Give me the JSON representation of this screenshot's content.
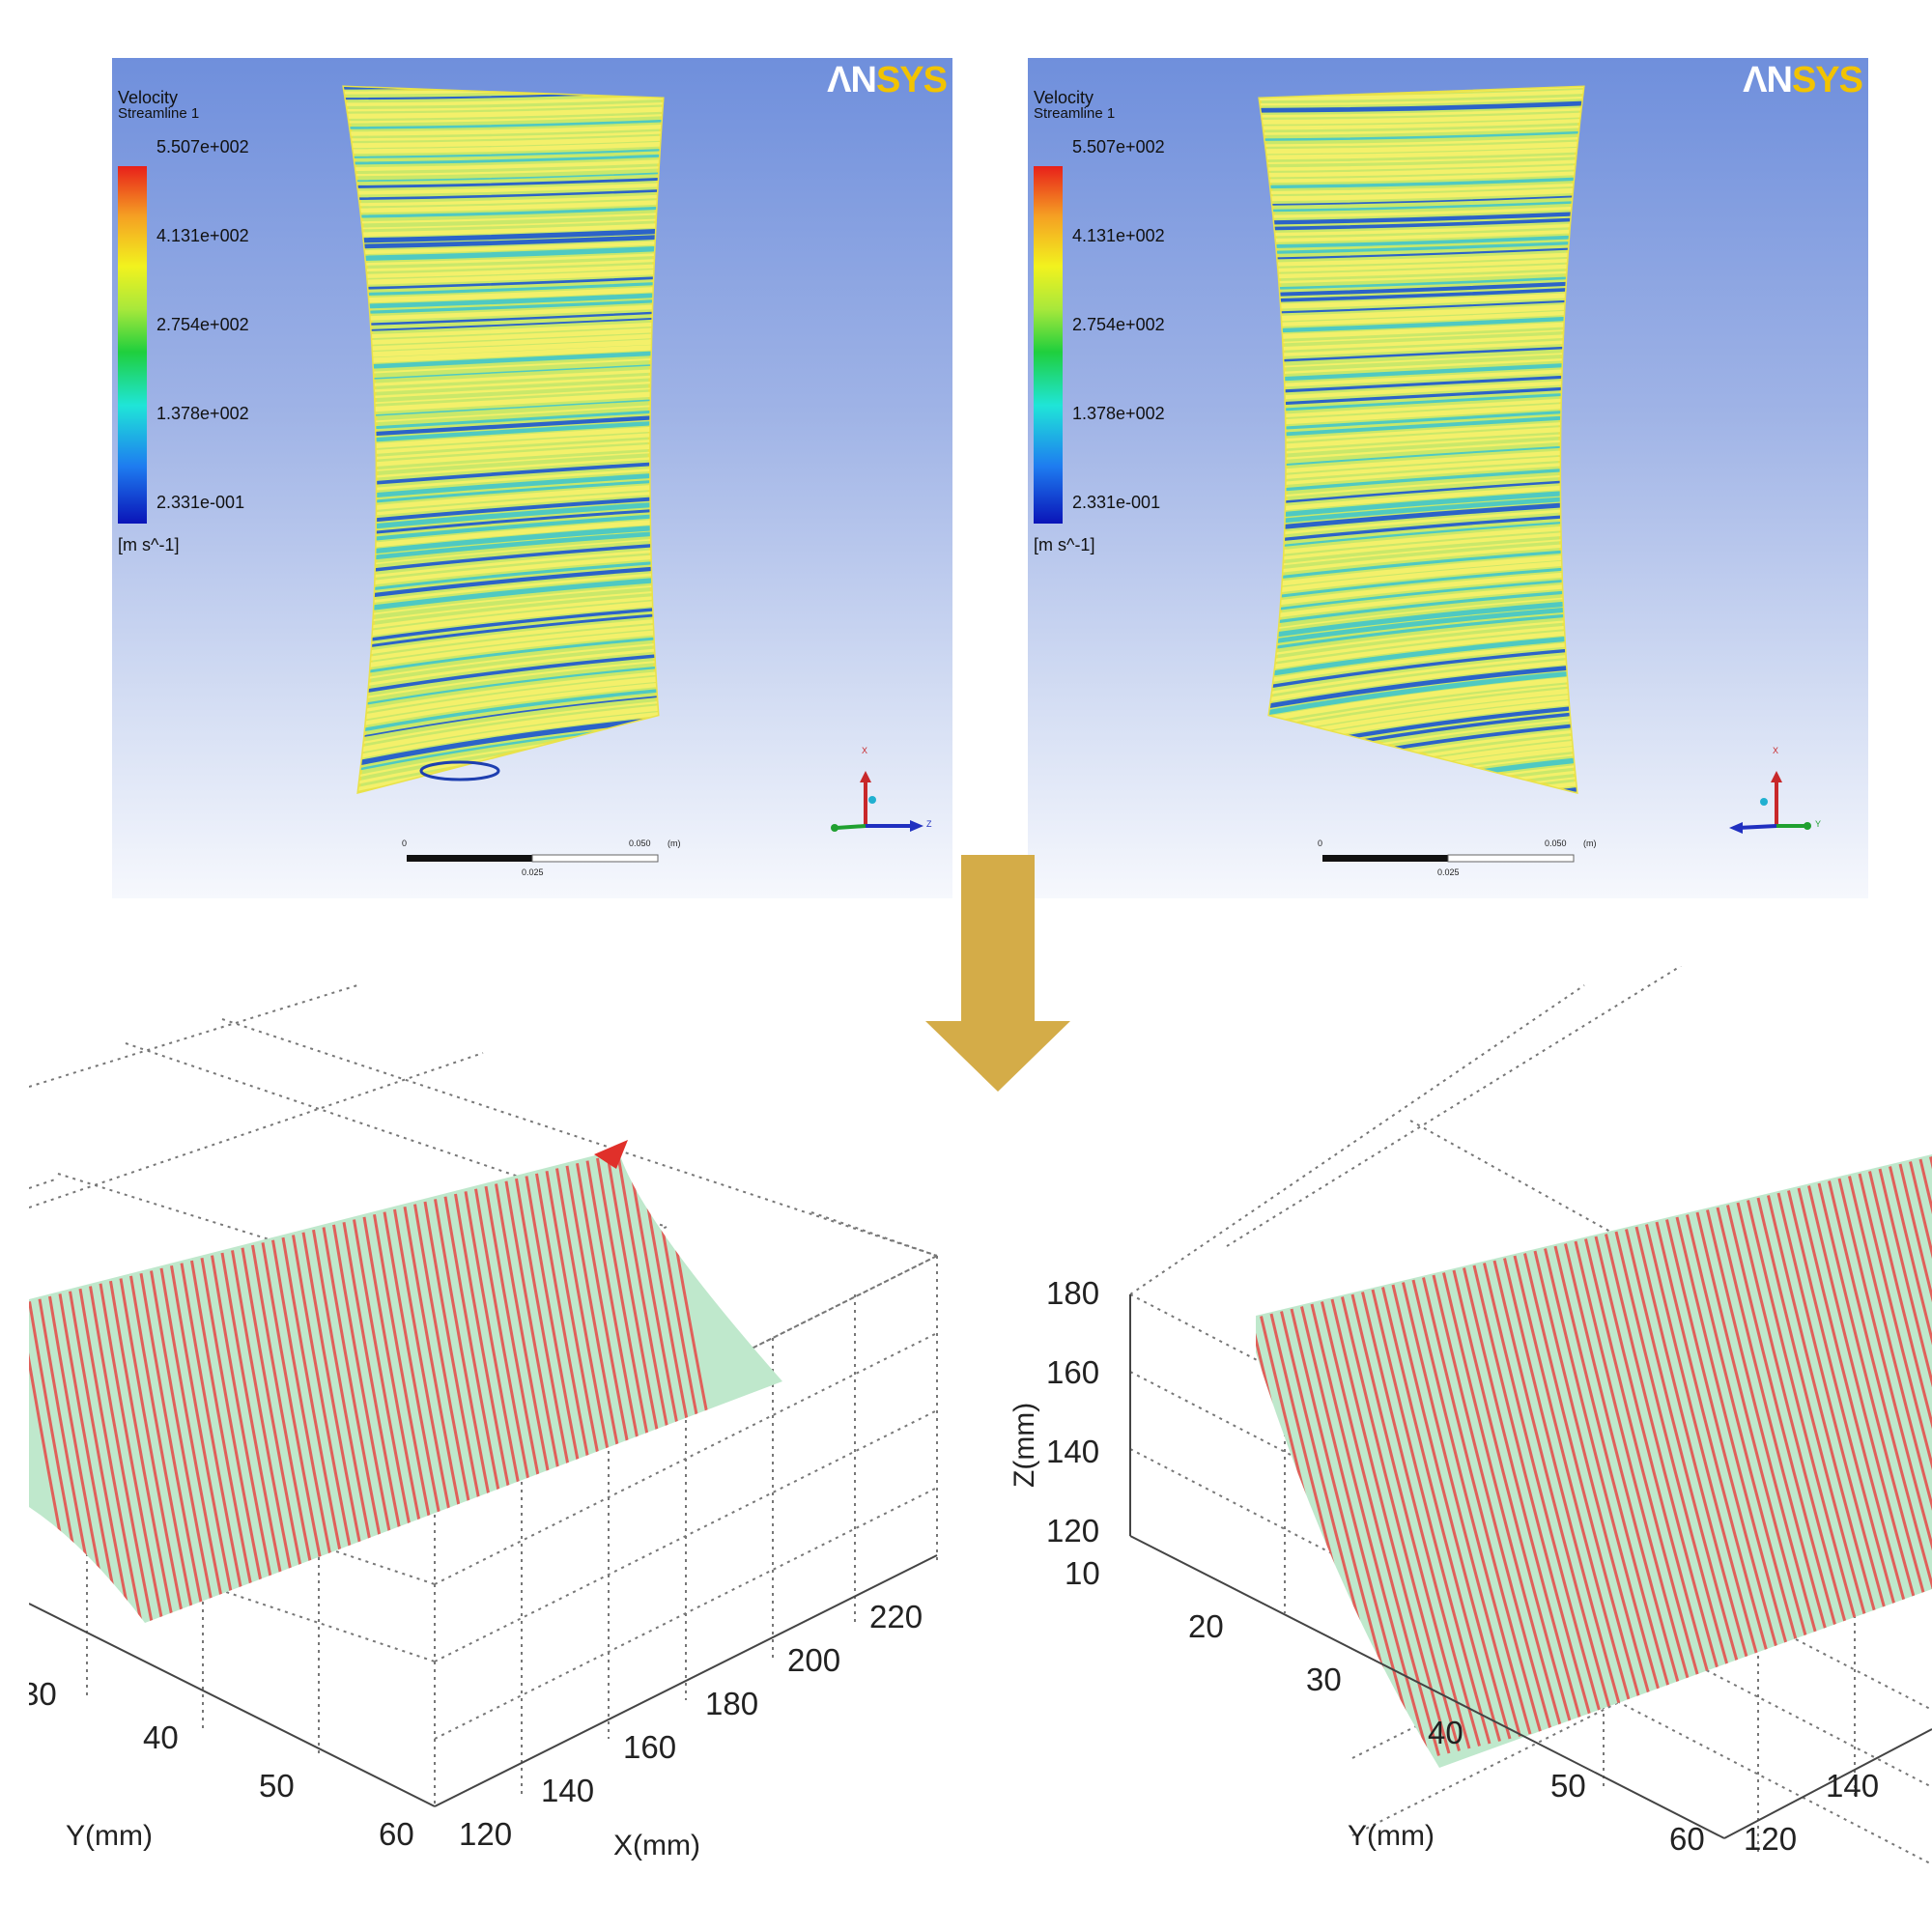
{
  "top_panels": [
    {
      "id": "left",
      "legend": {
        "title_line1": "Velocity",
        "title_line2": "Streamline 1",
        "values": [
          "5.507e+002",
          "4.131e+002",
          "2.754e+002",
          "1.378e+002",
          "2.331e-001"
        ],
        "unit": "[m s^-1]"
      },
      "logo": {
        "part1": "ΛN",
        "part2": "SYS"
      },
      "scale": {
        "start": "0",
        "end": "0.050",
        "unit": "(m)",
        "mid": "0.025"
      },
      "triad": {
        "up": "X",
        "right": "Z"
      }
    },
    {
      "id": "right",
      "legend": {
        "title_line1": "Velocity",
        "title_line2": "Streamline 1",
        "values": [
          "5.507e+002",
          "4.131e+002",
          "2.754e+002",
          "1.378e+002",
          "2.331e-001"
        ],
        "unit": "[m s^-1]"
      },
      "logo": {
        "part1": "ΛN",
        "part2": "SYS"
      },
      "scale": {
        "start": "0",
        "end": "0.050",
        "unit": "(m)",
        "mid": "0.025"
      },
      "triad": {
        "up": "X",
        "right": "Y"
      }
    }
  ],
  "arrow": {
    "color": "#d4ac48"
  },
  "colors": {
    "streamline_yellow": "#f4f06a",
    "streamline_cyan": "#4fc9c2",
    "streamline_blue": "#2c63c8",
    "surface_red": "#e0605a",
    "surface_green": "#bfe8cc"
  },
  "bottom_plots": [
    {
      "id": "left",
      "y_ticks": [
        "30",
        "40",
        "50",
        "60"
      ],
      "x_ticks": [
        "120",
        "140",
        "160",
        "180",
        "200",
        "220"
      ],
      "y_label": "Y(mm)",
      "x_label": "X(mm)"
    },
    {
      "id": "right",
      "z_ticks": [
        "180",
        "160",
        "140",
        "120"
      ],
      "y_ticks": [
        "10",
        "20",
        "30",
        "40",
        "50",
        "60"
      ],
      "x_ticks": [
        "120",
        "140"
      ],
      "z_label": "Z(mm)",
      "y_label": "Y(mm)"
    }
  ]
}
